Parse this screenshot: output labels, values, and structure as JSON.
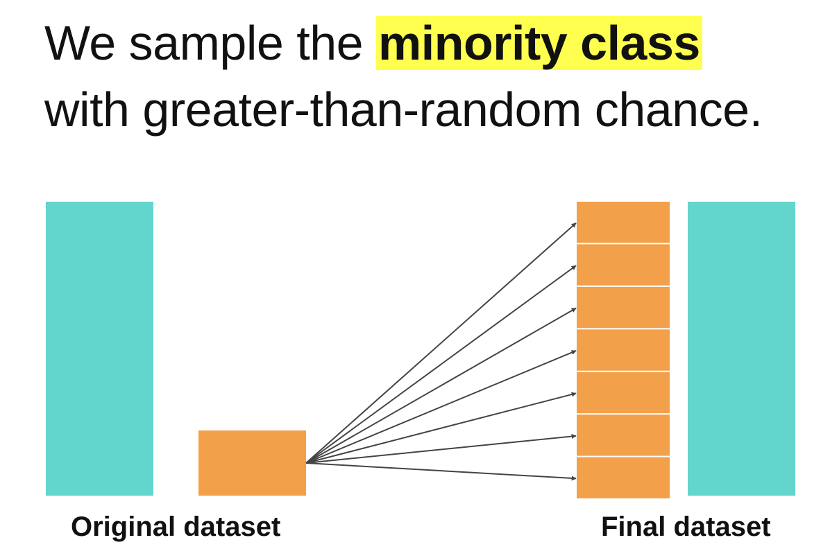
{
  "headline": {
    "line1_prefix": "We sample the ",
    "line1_highlight": "minority class",
    "line2": "with greater-than-random chance."
  },
  "diagram": {
    "original_label": "Original dataset",
    "final_label": "Final dataset",
    "replicated_minority_count": 7
  },
  "colors": {
    "majority_class": "#62d5cc",
    "minority_class": "#f2a04a",
    "highlight": "#ffff4f",
    "arrow": "#444444",
    "text": "#111111"
  }
}
